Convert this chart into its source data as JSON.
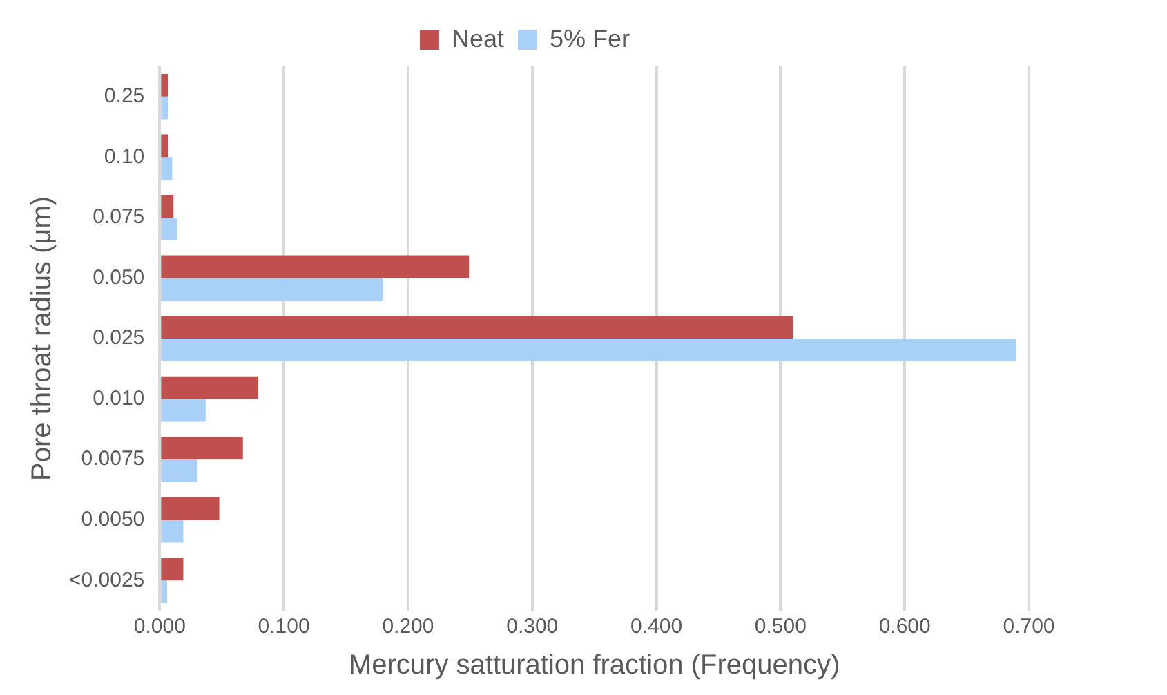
{
  "chart_data": {
    "type": "bar",
    "orientation": "horizontal",
    "xlabel": "Mercury satturation fraction (Frequency)",
    "ylabel": "Pore throat radius (μm)",
    "categories": [
      "0.25",
      "0.10",
      "0.075",
      "0.050",
      "0.025",
      "0.010",
      "0.0075",
      "0.0050",
      "<0.0025"
    ],
    "series": [
      {
        "name": "Neat",
        "color": "#c0504d",
        "values": [
          0.007,
          0.007,
          0.011,
          0.249,
          0.51,
          0.079,
          0.067,
          0.048,
          0.019
        ]
      },
      {
        "name": "5% Fer",
        "color": "#a9d1f7",
        "values": [
          0.007,
          0.01,
          0.014,
          0.18,
          0.69,
          0.037,
          0.03,
          0.019,
          0.006
        ]
      }
    ],
    "xlim": [
      0,
      0.7
    ],
    "xticks": [
      {
        "value": 0,
        "label": "0.000"
      },
      {
        "value": 0.1,
        "label": "0.100"
      },
      {
        "value": 0.2,
        "label": "0.200"
      },
      {
        "value": 0.3,
        "label": "0.300"
      },
      {
        "value": 0.4,
        "label": "0.400"
      },
      {
        "value": 0.5,
        "label": "0.500"
      },
      {
        "value": 0.6,
        "label": "0.600"
      },
      {
        "value": 0.7,
        "label": "0.700"
      }
    ],
    "grid": "x",
    "legend": "top"
  }
}
